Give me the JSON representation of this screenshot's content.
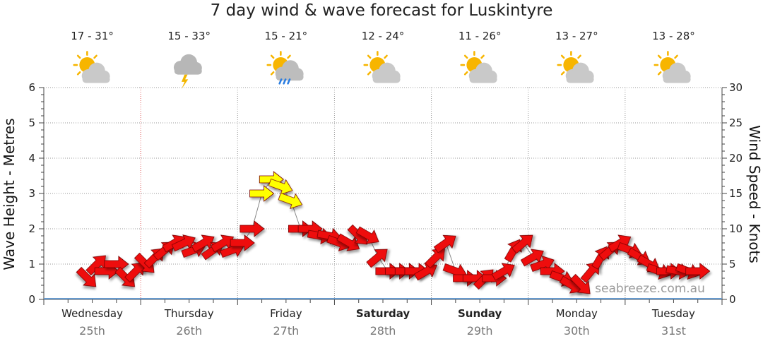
{
  "title": "7 day wind & wave forecast for Luskintyre",
  "watermark": "seabreeze.com.au",
  "days": [
    {
      "name": "Wednesday",
      "date": "25th",
      "temp": "17 - 31°",
      "icon": "sun-cloud-icon",
      "bold": false
    },
    {
      "name": "Thursday",
      "date": "26th",
      "temp": "15 - 33°",
      "icon": "storm-cloud-icon",
      "bold": false
    },
    {
      "name": "Friday",
      "date": "27th",
      "temp": "15 - 21°",
      "icon": "sun-rain-cloud-icon",
      "bold": false
    },
    {
      "name": "Saturday",
      "date": "28th",
      "temp": "12 - 24°",
      "icon": "sun-cloud-icon",
      "bold": true
    },
    {
      "name": "Sunday",
      "date": "29th",
      "temp": "11 - 26°",
      "icon": "sun-cloud-icon",
      "bold": true
    },
    {
      "name": "Monday",
      "date": "30th",
      "temp": "13 - 27°",
      "icon": "sun-cloud-icon",
      "bold": false
    },
    {
      "name": "Tuesday",
      "date": "31st",
      "temp": "13 - 28°",
      "icon": "sun-cloud-icon",
      "bold": false
    }
  ],
  "colors": {
    "wind_normal": "#ee1111",
    "wind_strong": "#ffff00",
    "wave": "#6699cc",
    "now_line": "#e06060",
    "grid": "#9a9a9a"
  },
  "chart_data": {
    "type": "line",
    "title": "7 day wind & wave forecast for Luskintyre",
    "left_axis": {
      "label": "Wave Height - Metres",
      "range": [
        0,
        6
      ],
      "ticks": [
        0,
        1,
        2,
        3,
        4,
        5,
        6
      ]
    },
    "right_axis": {
      "label": "Wind Speed - Knots",
      "range": [
        0,
        30
      ],
      "ticks": [
        0,
        5,
        10,
        15,
        20,
        25,
        30
      ]
    },
    "x_axis": {
      "unit": "days",
      "range": [
        0,
        7
      ],
      "categories": [
        "Wednesday",
        "Thursday",
        "Friday",
        "Saturday",
        "Sunday",
        "Monday",
        "Tuesday"
      ]
    },
    "grid": true,
    "now_day": 1.0,
    "wave_series": {
      "x": [
        0,
        7
      ],
      "values": [
        0.02,
        0.02
      ]
    },
    "wind_series": {
      "x": [
        0.45,
        0.55,
        0.65,
        0.75,
        0.85,
        0.95,
        1.05,
        1.15,
        1.25,
        1.35,
        1.45,
        1.55,
        1.65,
        1.75,
        1.85,
        1.95,
        2.05,
        2.15,
        2.25,
        2.35,
        2.45,
        2.55,
        2.65,
        2.75,
        2.85,
        2.95,
        3.05,
        3.15,
        3.25,
        3.35,
        3.45,
        3.55,
        3.65,
        3.75,
        3.85,
        3.95,
        4.05,
        4.15,
        4.25,
        4.35,
        4.45,
        4.55,
        4.65,
        4.75,
        4.85,
        4.95,
        5.05,
        5.15,
        5.25,
        5.35,
        5.45,
        5.55,
        5.65,
        5.75,
        5.85,
        5.95,
        6.05,
        6.15,
        6.25,
        6.35,
        6.45,
        6.55,
        6.65,
        6.75
      ],
      "speeds_knots": [
        3,
        5,
        4,
        5,
        3,
        4,
        5,
        6,
        7,
        8,
        8,
        7,
        8,
        7,
        8,
        7,
        8,
        10,
        15,
        17,
        16,
        14,
        10,
        10,
        9,
        9,
        8,
        8,
        9,
        9,
        6,
        4,
        4,
        4,
        4,
        4,
        6,
        8,
        4,
        3,
        3,
        3,
        3,
        4,
        7,
        8,
        6,
        5,
        4,
        3,
        2,
        2,
        4,
        6,
        7,
        8,
        7,
        6,
        5,
        4,
        4,
        4,
        4,
        4
      ],
      "directions_deg": [
        45,
        315,
        0,
        0,
        45,
        315,
        45,
        315,
        320,
        330,
        335,
        340,
        330,
        325,
        330,
        340,
        0,
        0,
        0,
        0,
        20,
        20,
        0,
        0,
        10,
        10,
        20,
        30,
        45,
        30,
        320,
        0,
        0,
        0,
        0,
        330,
        315,
        325,
        20,
        0,
        0,
        315,
        0,
        330,
        300,
        320,
        330,
        340,
        0,
        20,
        30,
        45,
        310,
        300,
        320,
        330,
        20,
        30,
        30,
        20,
        0,
        10,
        20,
        0
      ]
    }
  }
}
